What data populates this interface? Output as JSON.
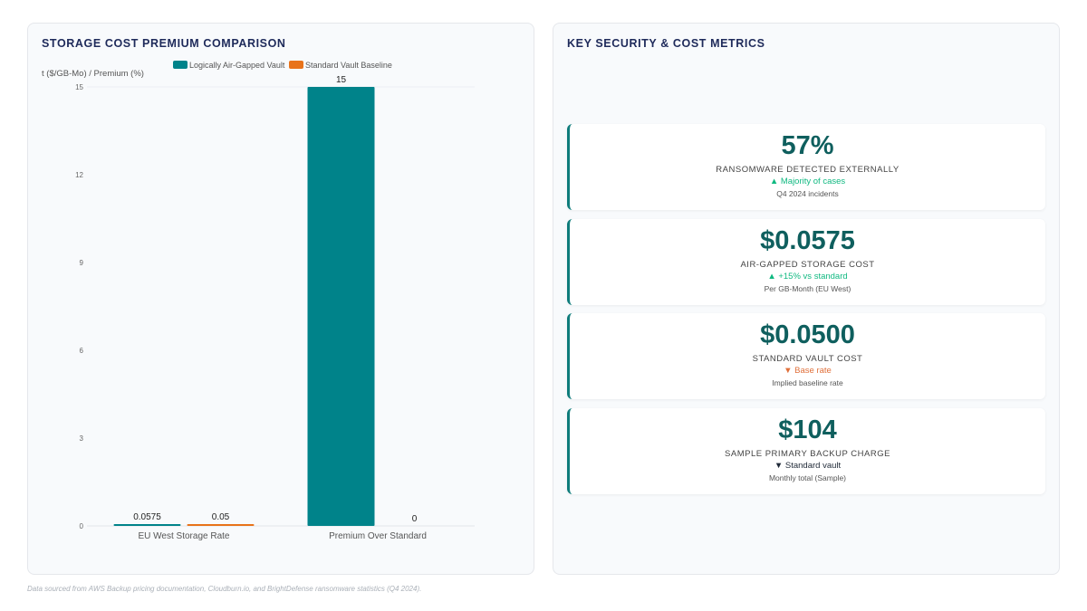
{
  "chart_panel": {
    "title": "STORAGE COST PREMIUM COMPARISON"
  },
  "chart_data": {
    "type": "bar",
    "categories": [
      "EU West Storage Rate",
      "Premium Over Standard"
    ],
    "series": [
      {
        "name": "Logically Air-Gapped Vault",
        "values": [
          0.0575,
          15
        ],
        "labels": [
          "0.0575",
          "15"
        ],
        "color": "#00838a"
      },
      {
        "name": "Standard Vault Baseline",
        "values": [
          0.05,
          0
        ],
        "labels": [
          "0.05",
          "0"
        ],
        "color": "#e8731a"
      }
    ],
    "ylabel": "t ($/GB-Mo) / Premium (%)",
    "ylim": [
      0,
      15
    ],
    "yticks": [
      "0",
      "3",
      "6",
      "9",
      "12",
      "15"
    ],
    "grid": false,
    "legend_position": "top"
  },
  "metrics_panel": {
    "title": "KEY SECURITY & COST METRICS",
    "cards": [
      {
        "value": "57%",
        "label": "RANSOMWARE DETECTED EXTERNALLY",
        "trend": "▲ Majority of cases",
        "trend_color": "#10b981",
        "sub": "Q4 2024 incidents"
      },
      {
        "value": "$0.0575",
        "label": "AIR-GAPPED STORAGE COST",
        "trend": "▲ +15% vs standard",
        "trend_color": "#10b981",
        "sub": "Per GB-Month (EU West)"
      },
      {
        "value": "$0.0500",
        "label": "STANDARD VAULT COST",
        "trend": "▼ Base rate",
        "trend_color": "#e0703b",
        "sub": "Implied baseline rate"
      },
      {
        "value": "$104",
        "label": "SAMPLE PRIMARY BACKUP CHARGE",
        "trend": "▼ Standard vault",
        "trend_color": "#1f2937",
        "sub": "Monthly total (Sample)"
      }
    ]
  },
  "footnote": "Data sourced from AWS Backup pricing documentation, Cloudburn.io, and BrightDefense ransomware statistics (Q4 2024)."
}
